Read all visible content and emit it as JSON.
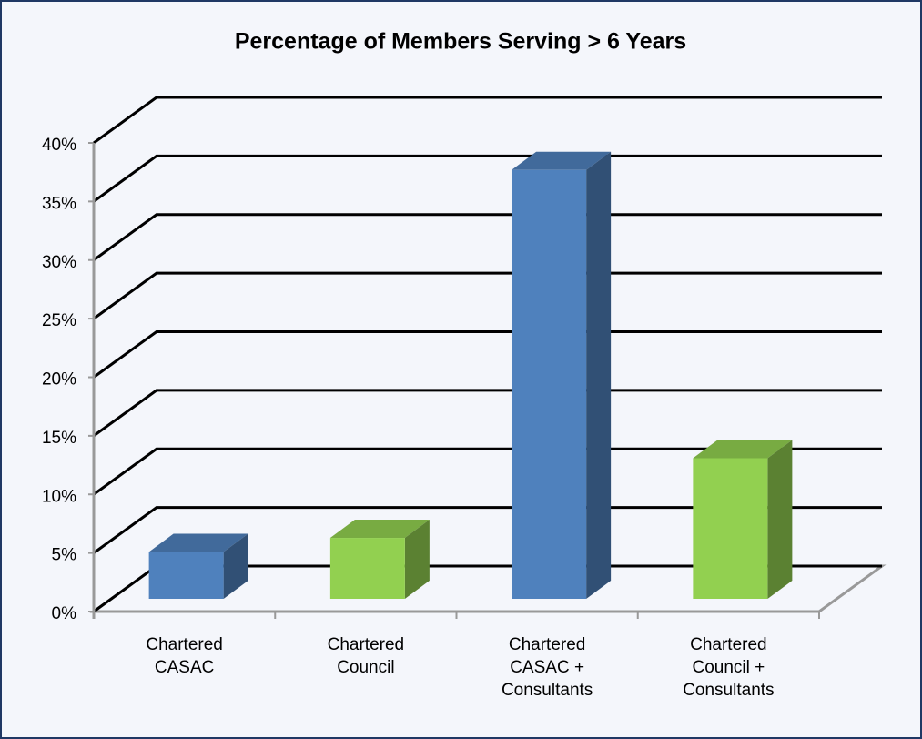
{
  "chart_data": {
    "type": "bar3d",
    "title": "Percentage of Members Serving > 6 Years",
    "categories": [
      "Chartered CASAC",
      "Chartered Council",
      "Chartered CASAC + Consultants",
      "Chartered Council + Consultants"
    ],
    "values": [
      4,
      5.2,
      36.6,
      12
    ],
    "colors": [
      "#4f81bd",
      "#92d050",
      "#4f81bd",
      "#92d050"
    ],
    "ylim": [
      0,
      40
    ],
    "yticks": [
      {
        "value": 0,
        "label": "0%"
      },
      {
        "value": 5,
        "label": "5%"
      },
      {
        "value": 10,
        "label": "10%"
      },
      {
        "value": 15,
        "label": "15%"
      },
      {
        "value": 20,
        "label": "20%"
      },
      {
        "value": 25,
        "label": "25%"
      },
      {
        "value": 30,
        "label": "30%"
      },
      {
        "value": 35,
        "label": "35%"
      },
      {
        "value": 40,
        "label": "40%"
      }
    ],
    "grid": true
  }
}
